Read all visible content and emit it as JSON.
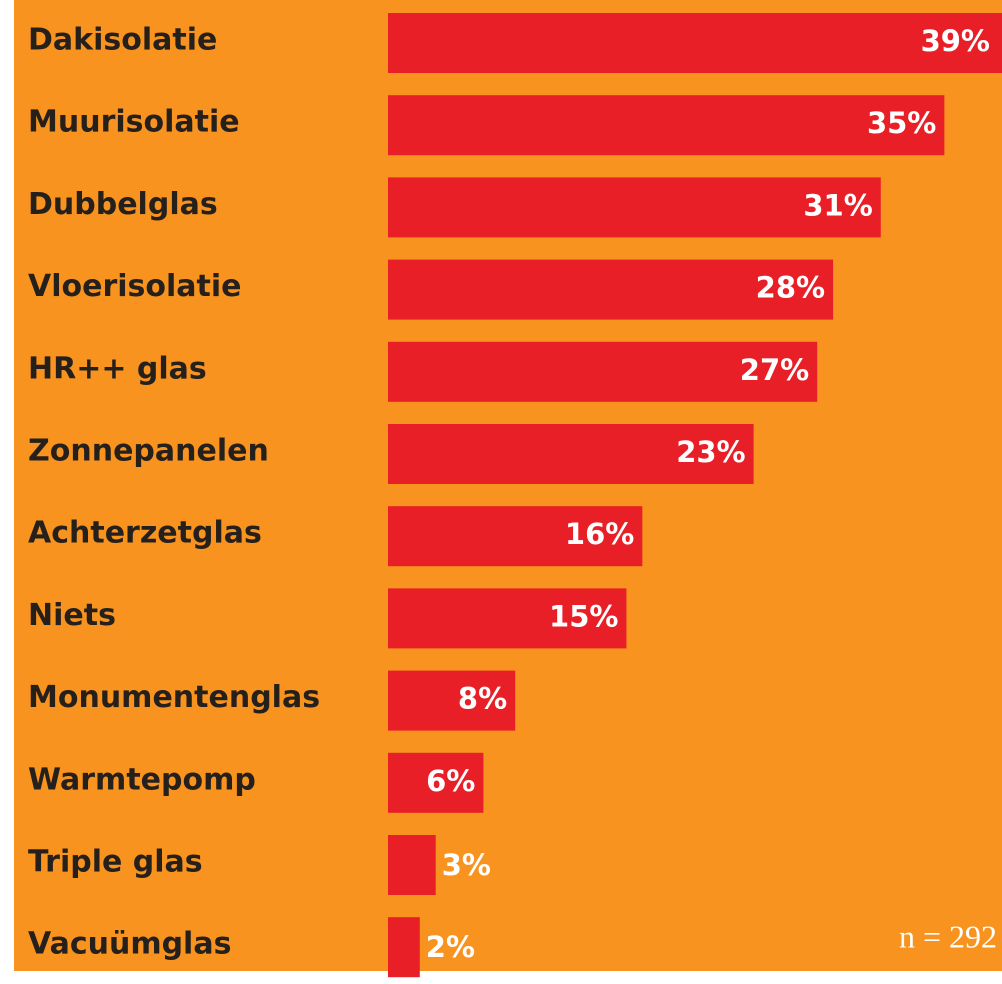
{
  "chart_data": {
    "type": "bar",
    "orientation": "horizontal",
    "categories": [
      "Dakisolatie",
      "Muurisolatie",
      "Dubbelglas",
      "Vloerisolatie",
      "HR++ glas",
      "Zonnepanelen",
      "Achterzetglas",
      "Niets",
      "Monumentenglas",
      "Warmtepomp",
      "Triple glas",
      "Vacuümglas"
    ],
    "values": [
      39,
      35,
      31,
      28,
      27,
      23,
      16,
      15,
      8,
      6,
      3,
      2
    ],
    "value_labels": [
      "39%",
      "35%",
      "31%",
      "28%",
      "27%",
      "23%",
      "16%",
      "15%",
      "8%",
      "6%",
      "3%",
      "2%"
    ],
    "color": "#e81f27",
    "xlim": [
      0,
      38.5
    ],
    "annotation": "n = 292"
  }
}
